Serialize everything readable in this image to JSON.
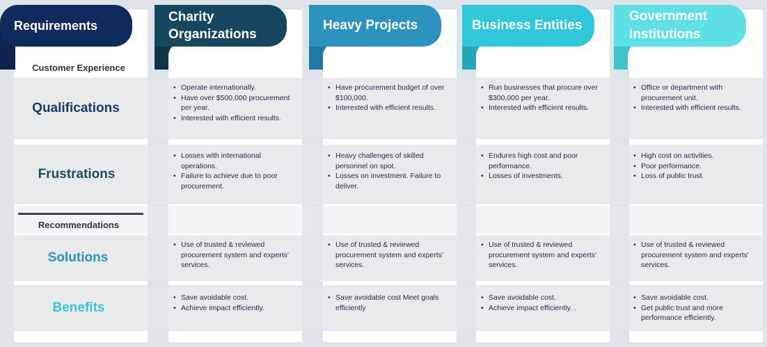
{
  "headers": {
    "requirements": "Requirements",
    "columns": [
      {
        "line1": "Charity",
        "line2": "Organizations",
        "color": "#17475e"
      },
      {
        "line1": "Heavy Projects",
        "line2": "",
        "color": "#2b93bd"
      },
      {
        "line1": "Business Entities",
        "line2": "",
        "color": "#2fc7d9"
      },
      {
        "line1": "Government",
        "line2": "Institutions",
        "color": "#5fdfe6"
      }
    ]
  },
  "sections": {
    "customer_experience": "Customer Experience",
    "recommendations": "Recommendations"
  },
  "rows": [
    {
      "label": "Qualifications",
      "color": "#1b3b6b",
      "cells": [
        [
          "Operate internationally.",
          "Have over $500,000 procurement per year.",
          "Interested with efficient results."
        ],
        [
          "Have procurement budget of over $100,000.",
          "Interested with efficient results."
        ],
        [
          "Run businesses that procure over $300,000 per year.",
          "Interested with efficient results."
        ],
        [
          "Office or department with procurement unit.",
          "Interested with efficient results."
        ]
      ]
    },
    {
      "label": "Frustrations",
      "color": "#1f4a63",
      "cells": [
        [
          "Losses with international operations.",
          "Failure to achieve due to poor procurement."
        ],
        [
          "Heavy challenges of skilled personnel on spot.",
          "Losses on investment. Failure to deliver."
        ],
        [
          "Endures high cost and poor performance.",
          "Losses of investments."
        ],
        [
          "High cost on activities.",
          "Poor performance.",
          "Loss of public trust."
        ]
      ]
    },
    {
      "label": "Solutions",
      "color": "#2a93c0",
      "cells": [
        [
          "Use of trusted & reviewed procurement system and experts' services."
        ],
        [
          "Use of trusted & reviewed procurement system and experts' services."
        ],
        [
          "Use of trusted & reviewed procurement system and experts' services."
        ],
        [
          "Use of trusted & reviewed procurement system and experts' services."
        ]
      ]
    },
    {
      "label": "Benefits",
      "color": "#36c6d6",
      "cells": [
        [
          "Save avoidable cost.",
          "Achieve impact efficiently."
        ],
        [
          "Save avoidable cost Meet goals efficiently"
        ],
        [
          "Save avoidable cost.",
          "Achieve impact efficiently.        ."
        ],
        [
          "Save avoidable cost.",
          "Get public trust and more performance efficiently."
        ]
      ]
    }
  ]
}
